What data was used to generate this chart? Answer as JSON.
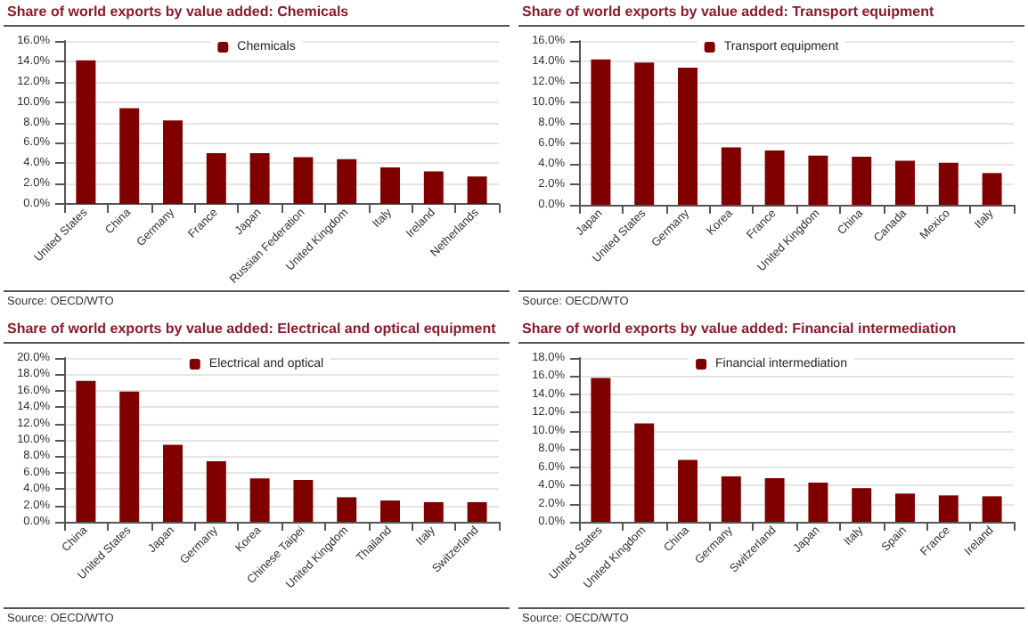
{
  "chart_data": [
    {
      "type": "bar",
      "title": "Share of world exports by value added: Chemicals",
      "categories": [
        "United States",
        "China",
        "Germany",
        "France",
        "Japan",
        "Russian Federation",
        "United Kingdom",
        "Italy",
        "Ireland",
        "Netherlands"
      ],
      "series": [
        {
          "name": "Chemicals",
          "color": "#800000",
          "values": [
            14.1,
            9.4,
            8.2,
            5.0,
            5.0,
            4.6,
            4.4,
            3.6,
            3.2,
            2.7
          ]
        }
      ],
      "ylim": [
        0,
        16
      ],
      "yticks": [
        {
          "value": 0,
          "label": "0.0%"
        },
        {
          "value": 2,
          "label": "2.0%"
        },
        {
          "value": 4,
          "label": "4.0%"
        },
        {
          "value": 6,
          "label": "6.0%"
        },
        {
          "value": 8,
          "label": "8.0%"
        },
        {
          "value": 10,
          "label": "10.0%"
        },
        {
          "value": 12,
          "label": "12.0%"
        },
        {
          "value": 14,
          "label": "14.0%"
        },
        {
          "value": 16,
          "label": "16.0%"
        }
      ],
      "grid": "y",
      "legend": "top",
      "annotations": [
        "Source: OECD/WTO"
      ]
    },
    {
      "type": "bar",
      "title": "Share of world exports by value added: Transport equipment",
      "categories": [
        "Japan",
        "United States",
        "Germany",
        "Korea",
        "France",
        "United Kingdom",
        "China",
        "Canada",
        "Mexico",
        "Italy"
      ],
      "series": [
        {
          "name": "Transport equipment",
          "color": "#800000",
          "values": [
            14.2,
            13.9,
            13.4,
            5.6,
            5.3,
            4.8,
            4.7,
            4.3,
            4.1,
            3.1
          ]
        }
      ],
      "ylim": [
        0,
        16
      ],
      "yticks": [
        {
          "value": 0,
          "label": "0.0%"
        },
        {
          "value": 2,
          "label": "2.0%"
        },
        {
          "value": 4,
          "label": "4.0%"
        },
        {
          "value": 6,
          "label": "6.0%"
        },
        {
          "value": 8,
          "label": "8.0%"
        },
        {
          "value": 10,
          "label": "10.0%"
        },
        {
          "value": 12,
          "label": "12.0%"
        },
        {
          "value": 14,
          "label": "14.0%"
        },
        {
          "value": 16,
          "label": "16.0%"
        }
      ],
      "grid": "y",
      "legend": "top",
      "annotations": [
        "Source: OECD/WTO"
      ]
    },
    {
      "type": "bar",
      "title": "Share of world exports by value added: Electrical and optical equipment",
      "categories": [
        "China",
        "United States",
        "Japan",
        "Germany",
        "Korea",
        "Chinese Taipei",
        "United Kingdom",
        "Thailand",
        "Italy",
        "Switzerland"
      ],
      "series": [
        {
          "name": "Electrical and optical",
          "color": "#800000",
          "values": [
            17.2,
            15.9,
            9.4,
            7.4,
            5.3,
            5.1,
            3.0,
            2.6,
            2.4,
            2.4
          ]
        }
      ],
      "ylim": [
        0,
        20
      ],
      "yticks": [
        {
          "value": 0,
          "label": "0.0%"
        },
        {
          "value": 2,
          "label": "2.0%"
        },
        {
          "value": 4,
          "label": "4.0%"
        },
        {
          "value": 6,
          "label": "6.0%"
        },
        {
          "value": 8,
          "label": "8.0%"
        },
        {
          "value": 10,
          "label": "10.0%"
        },
        {
          "value": 12,
          "label": "12.0%"
        },
        {
          "value": 14,
          "label": "14.0%"
        },
        {
          "value": 16,
          "label": "16.0%"
        },
        {
          "value": 18,
          "label": "18.0%"
        },
        {
          "value": 20,
          "label": "20.0%"
        }
      ],
      "grid": "y",
      "legend": "top",
      "annotations": [
        "Source: OECD/WTO"
      ]
    },
    {
      "type": "bar",
      "title": "Share of world exports by value added: Financial intermediation",
      "categories": [
        "United States",
        "United Kingdom",
        "China",
        "Germany",
        "Switzerland",
        "Japan",
        "Italy",
        "Spain",
        "France",
        "Ireland"
      ],
      "series": [
        {
          "name": "Financial intermediation",
          "color": "#800000",
          "values": [
            15.8,
            10.8,
            6.8,
            5.0,
            4.8,
            4.3,
            3.7,
            3.1,
            2.9,
            2.8
          ]
        }
      ],
      "ylim": [
        0,
        18
      ],
      "yticks": [
        {
          "value": 0,
          "label": "0.0%"
        },
        {
          "value": 2,
          "label": "2.0%"
        },
        {
          "value": 4,
          "label": "4.0%"
        },
        {
          "value": 6,
          "label": "6.0%"
        },
        {
          "value": 8,
          "label": "8.0%"
        },
        {
          "value": 10,
          "label": "10.0%"
        },
        {
          "value": 12,
          "label": "12.0%"
        },
        {
          "value": 14,
          "label": "14.0%"
        },
        {
          "value": 16,
          "label": "16.0%"
        },
        {
          "value": 18,
          "label": "18.0%"
        }
      ],
      "grid": "y",
      "legend": "top",
      "annotations": [
        "Source: OECD/WTO"
      ]
    }
  ]
}
